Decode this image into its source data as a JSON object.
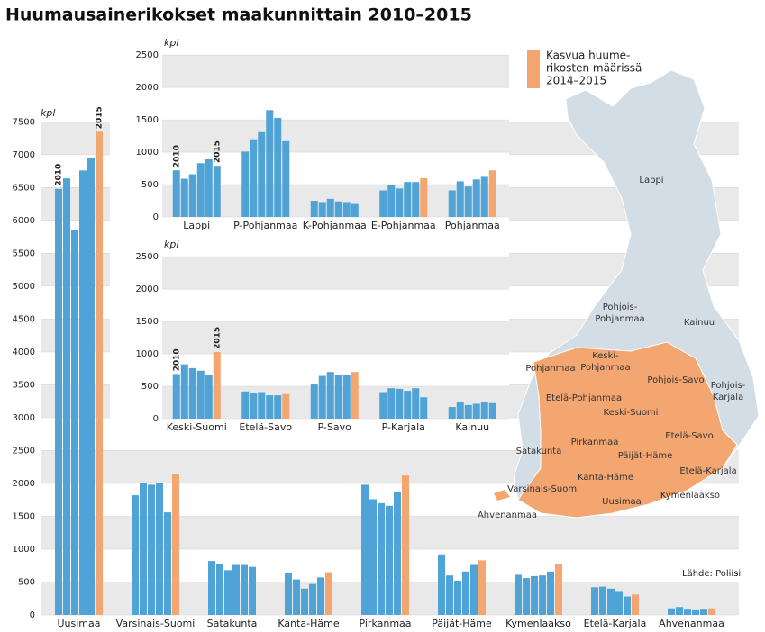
{
  "title": "Huumausainerikokset maakunnittain 2010–2015",
  "legend": {
    "lines": [
      "Kasvua huume-",
      "rikosten määrissä",
      "2014–2015"
    ],
    "color": "#f4a671"
  },
  "source": "Lähde: Poliisi",
  "chart_data": [
    {
      "type": "bar",
      "y_label": "kpl",
      "year_labels": [
        "2010",
        "2015"
      ],
      "color": "#4fa3d6",
      "highlight_color": "#f4a671",
      "grid_bands": true,
      "ylim": [
        0,
        7600
      ],
      "yticks": [
        0,
        500,
        1000,
        1500,
        2000,
        2500,
        3000,
        3500,
        4000,
        4500,
        5000,
        5500,
        6000,
        6500,
        7000,
        7500
      ],
      "categories": [
        "Uusimaa",
        "Varsinais-Suomi",
        "Satakunta",
        "Kanta-Häme",
        "Pirkanmaa",
        "Päijät-Häme",
        "Kymenlaakso",
        "Etelä-Karjala",
        "Ahvenanmaa"
      ],
      "values": [
        [
          6480,
          6640,
          5860,
          6760,
          6950,
          7350
        ],
        [
          1820,
          2000,
          1980,
          2000,
          1560,
          2150
        ],
        [
          820,
          780,
          680,
          760,
          760,
          730
        ],
        [
          640,
          540,
          400,
          470,
          570,
          650
        ],
        [
          1980,
          1760,
          1700,
          1660,
          1870,
          2120
        ],
        [
          920,
          600,
          520,
          660,
          760,
          830
        ],
        [
          610,
          560,
          590,
          600,
          660,
          770
        ],
        [
          420,
          430,
          400,
          350,
          280,
          310
        ],
        [
          100,
          120,
          80,
          70,
          80,
          100
        ]
      ]
    },
    {
      "type": "bar",
      "y_label": "kpl",
      "year_labels": [
        "2010",
        "2015"
      ],
      "color": "#4fa3d6",
      "highlight_color": "#f4a671",
      "grid_bands": true,
      "ylim": [
        0,
        2600
      ],
      "yticks": [
        0,
        500,
        1000,
        1500,
        2000,
        2500
      ],
      "categories": [
        "Lappi",
        "P-Pohjanmaa",
        "K-Pohjanmaa",
        "E-Pohjanmaa",
        "Pohjanmaa"
      ],
      "values": [
        [
          720,
          590,
          660,
          830,
          890,
          790
        ],
        [
          1010,
          1200,
          1310,
          1650,
          1530,
          1170
        ],
        [
          250,
          230,
          280,
          240,
          230,
          200
        ],
        [
          410,
          500,
          440,
          540,
          540,
          600
        ],
        [
          410,
          550,
          470,
          580,
          620,
          720
        ]
      ]
    },
    {
      "type": "bar",
      "y_label": "kpl",
      "year_labels": [
        "2010",
        "2015"
      ],
      "color": "#4fa3d6",
      "highlight_color": "#f4a671",
      "grid_bands": true,
      "ylim": [
        0,
        2600
      ],
      "yticks": [
        0,
        500,
        1000,
        1500,
        2000,
        2500
      ],
      "categories": [
        "Keski-Suomi",
        "Etelä-Savo",
        "P-Savo",
        "P-Karjala",
        "Kainuu"
      ],
      "values": [
        [
          690,
          840,
          780,
          740,
          670,
          1030
        ],
        [
          420,
          400,
          410,
          360,
          360,
          380
        ],
        [
          530,
          660,
          720,
          680,
          680,
          720
        ],
        [
          410,
          470,
          460,
          430,
          470,
          330
        ],
        [
          180,
          260,
          210,
          230,
          260,
          240
        ]
      ]
    }
  ],
  "map": {
    "labels": [
      [
        "Lappi"
      ],
      [
        "Pohjois-",
        "Pohjanmaa"
      ],
      [
        "Kainuu"
      ],
      [
        "Keski-",
        "Pohjanmaa"
      ],
      [
        "Pohjanmaa"
      ],
      [
        "Pohjois-",
        "Karjala"
      ],
      [
        "Pohjois-Savo"
      ],
      [
        "Etelä-Pohjanmaa"
      ],
      [
        "Keski-Suomi"
      ],
      [
        "Etelä-Savo"
      ],
      [
        "Satakunta"
      ],
      [
        "Pirkanmaa"
      ],
      [
        "Päijät-Häme"
      ],
      [
        "Etelä-Karjala"
      ],
      [
        "Kanta-Häme"
      ],
      [
        "Varsinais-Suomi"
      ],
      [
        "Uusimaa"
      ],
      [
        "Kymenlaakso"
      ],
      [
        "Ahvenanmaa"
      ]
    ]
  }
}
